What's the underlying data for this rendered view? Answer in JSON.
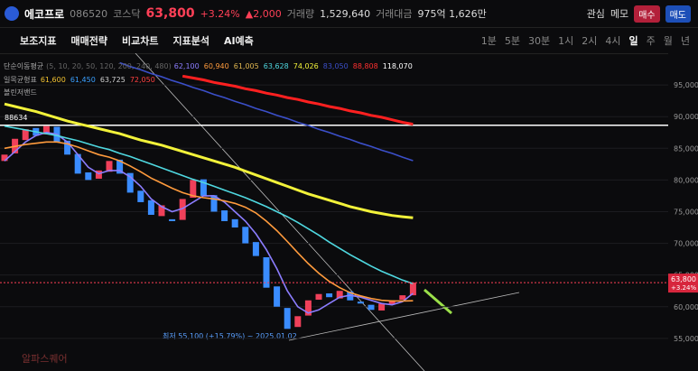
{
  "header": {
    "name": "에코프로",
    "code": "086520",
    "market": "코스닥",
    "price": "63,800",
    "change_pct": "+3.24%",
    "change": "▲2,000",
    "volume_label": "거래량",
    "volume": "1,529,640",
    "amount_label": "거래대금",
    "amount": "975억 1,626만",
    "watch": "관심",
    "memo": "메모",
    "buy": "매수",
    "sell": "매도"
  },
  "toolbar": {
    "tools": [
      "보조지표",
      "매매전략",
      "비교차트",
      "지표분석",
      "AI예측"
    ],
    "periods": [
      "1분",
      "5분",
      "30분",
      "1시",
      "2시",
      "4시",
      "일",
      "주",
      "월",
      "년"
    ]
  },
  "legend": {
    "sma": {
      "label": "단순이동평균",
      "params": "(5, 10, 20, 50, 120, 200, 240, 480)",
      "values": [
        {
          "text": "62,100",
          "color": "#8c7dff"
        },
        {
          "text": "60,940",
          "color": "#ff9b3d"
        },
        {
          "text": "61,005",
          "color": "#e0b650"
        },
        {
          "text": "63,628",
          "color": "#4fd8e0"
        },
        {
          "text": "74,026",
          "color": "#f2f23a"
        },
        {
          "text": "83,050",
          "color": "#3b4fc9"
        },
        {
          "text": "88,808",
          "color": "#ff3030"
        },
        {
          "text": "118,070",
          "color": "#ffffff"
        }
      ]
    },
    "ichimoku": {
      "label": "일목균형표",
      "values": [
        {
          "text": "61,600",
          "color": "#f2c230"
        },
        {
          "text": "61,450",
          "color": "#3aa0ff"
        },
        {
          "text": "63,725",
          "color": "#cfcfcf"
        },
        {
          "text": "72,050",
          "color": "#ff4040"
        }
      ]
    },
    "bollinger": {
      "label": "볼린저밴드"
    }
  },
  "watermark": "알파스퀘어",
  "chart_data": {
    "type": "candlestick",
    "up_color": "#f0405a",
    "down_color": "#3a8cff",
    "open": [
      83000,
      84200,
      86300,
      88200,
      87200,
      88400,
      86200,
      84100,
      81200,
      80200,
      81300,
      83200,
      81100,
      78300,
      76800,
      74300,
      73800,
      73700,
      77200,
      80100,
      77600,
      75200,
      73800,
      72600,
      70200,
      67800,
      63200,
      59800,
      56800,
      58600,
      61100,
      62100,
      61300,
      62400,
      60800,
      60300,
      59400,
      60400,
      61100,
      61800
    ],
    "close": [
      84000,
      86500,
      88000,
      87000,
      88500,
      86000,
      84000,
      81000,
      80000,
      81500,
      83000,
      81000,
      78000,
      76500,
      74500,
      76000,
      73500,
      77000,
      80000,
      77500,
      75000,
      73500,
      72500,
      70000,
      68000,
      63000,
      60000,
      56500,
      58500,
      61000,
      62000,
      61500,
      62500,
      61000,
      60500,
      59500,
      60500,
      61000,
      61800,
      63800
    ],
    "series": [
      {
        "color": "#8c7dff",
        "values": [
          83000,
          84500,
          86000,
          87000,
          87500,
          87200,
          86000,
          84000,
          82000,
          81000,
          81500,
          81500,
          80500,
          79000,
          77000,
          75800,
          75000,
          75500,
          76500,
          77500,
          77500,
          76500,
          75000,
          73500,
          71500,
          69000,
          66000,
          62500,
          60000,
          59000,
          59500,
          60500,
          61500,
          61800,
          61500,
          61000,
          60500,
          60300,
          60800,
          62100
        ]
      },
      {
        "color": "#ff9b3d",
        "values": [
          85000,
          85300,
          85600,
          85800,
          86000,
          86000,
          85700,
          85200,
          84600,
          84000,
          83600,
          83000,
          82200,
          81300,
          80300,
          79500,
          78700,
          78000,
          77500,
          77200,
          77000,
          76700,
          76300,
          75700,
          74800,
          73500,
          72000,
          70300,
          68500,
          66800,
          65300,
          64000,
          63000,
          62200,
          61700,
          61300,
          61000,
          60900,
          60900,
          60940
        ]
      },
      {
        "color": "#4fd8e0",
        "values": [
          88500,
          88200,
          87900,
          87600,
          87300,
          87000,
          86600,
          86200,
          85700,
          85200,
          84800,
          84200,
          83700,
          83100,
          82500,
          81900,
          81300,
          80700,
          80100,
          79600,
          79000,
          78400,
          77800,
          77200,
          76500,
          75800,
          75000,
          74200,
          73300,
          72300,
          71300,
          70200,
          69200,
          68200,
          67300,
          66400,
          65600,
          64900,
          64200,
          63628
        ]
      },
      {
        "color": "#f2f23a",
        "values": [
          92000,
          91600,
          91200,
          90800,
          90300,
          89800,
          89300,
          88900,
          88500,
          88100,
          87700,
          87300,
          86800,
          86300,
          85900,
          85500,
          85000,
          84500,
          84000,
          83500,
          83000,
          82500,
          82000,
          81400,
          80800,
          80200,
          79600,
          79000,
          78400,
          77800,
          77300,
          76800,
          76300,
          75800,
          75400,
          75000,
          74700,
          74400,
          74200,
          74026
        ]
      },
      {
        "color": "#3b4fc9",
        "values": [
          null,
          null,
          null,
          null,
          null,
          null,
          null,
          null,
          null,
          null,
          null,
          98500,
          97900,
          97400,
          96800,
          96300,
          95700,
          95200,
          94600,
          94100,
          93500,
          93000,
          92400,
          91900,
          91300,
          90800,
          90200,
          89700,
          89100,
          88600,
          88000,
          87500,
          86900,
          86400,
          85800,
          85300,
          84700,
          84200,
          83600,
          83050
        ]
      },
      {
        "color": "#ff2020",
        "values": [
          null,
          null,
          null,
          null,
          null,
          null,
          null,
          null,
          null,
          null,
          null,
          null,
          null,
          null,
          null,
          null,
          null,
          96400,
          96100,
          95800,
          95400,
          95100,
          94800,
          94400,
          94100,
          93700,
          93400,
          93000,
          92700,
          92300,
          92000,
          91600,
          91300,
          90900,
          90600,
          90200,
          89900,
          89500,
          89100,
          88808
        ]
      }
    ],
    "ylim": [
      49850,
      100000
    ],
    "yticks": [
      {
        "value": 55000,
        "label": "55,000"
      },
      {
        "value": 60000,
        "label": "60,000"
      },
      {
        "value": 65000,
        "label": "65,000"
      },
      {
        "value": 70000,
        "label": "70,000"
      },
      {
        "value": 75000,
        "label": "75,000"
      },
      {
        "value": 80000,
        "label": "80,000"
      },
      {
        "value": 85000,
        "label": "85,000"
      },
      {
        "value": 90000,
        "label": "90,000"
      },
      {
        "value": 95000,
        "label": "95,000"
      }
    ],
    "hline": {
      "value": 88634,
      "label": "88634"
    },
    "current": {
      "value": 63800,
      "label": "63,800",
      "pct": "+3.24%"
    },
    "low_note": "최저 55,100 (+15.79%) ~ 2025.01.02"
  }
}
